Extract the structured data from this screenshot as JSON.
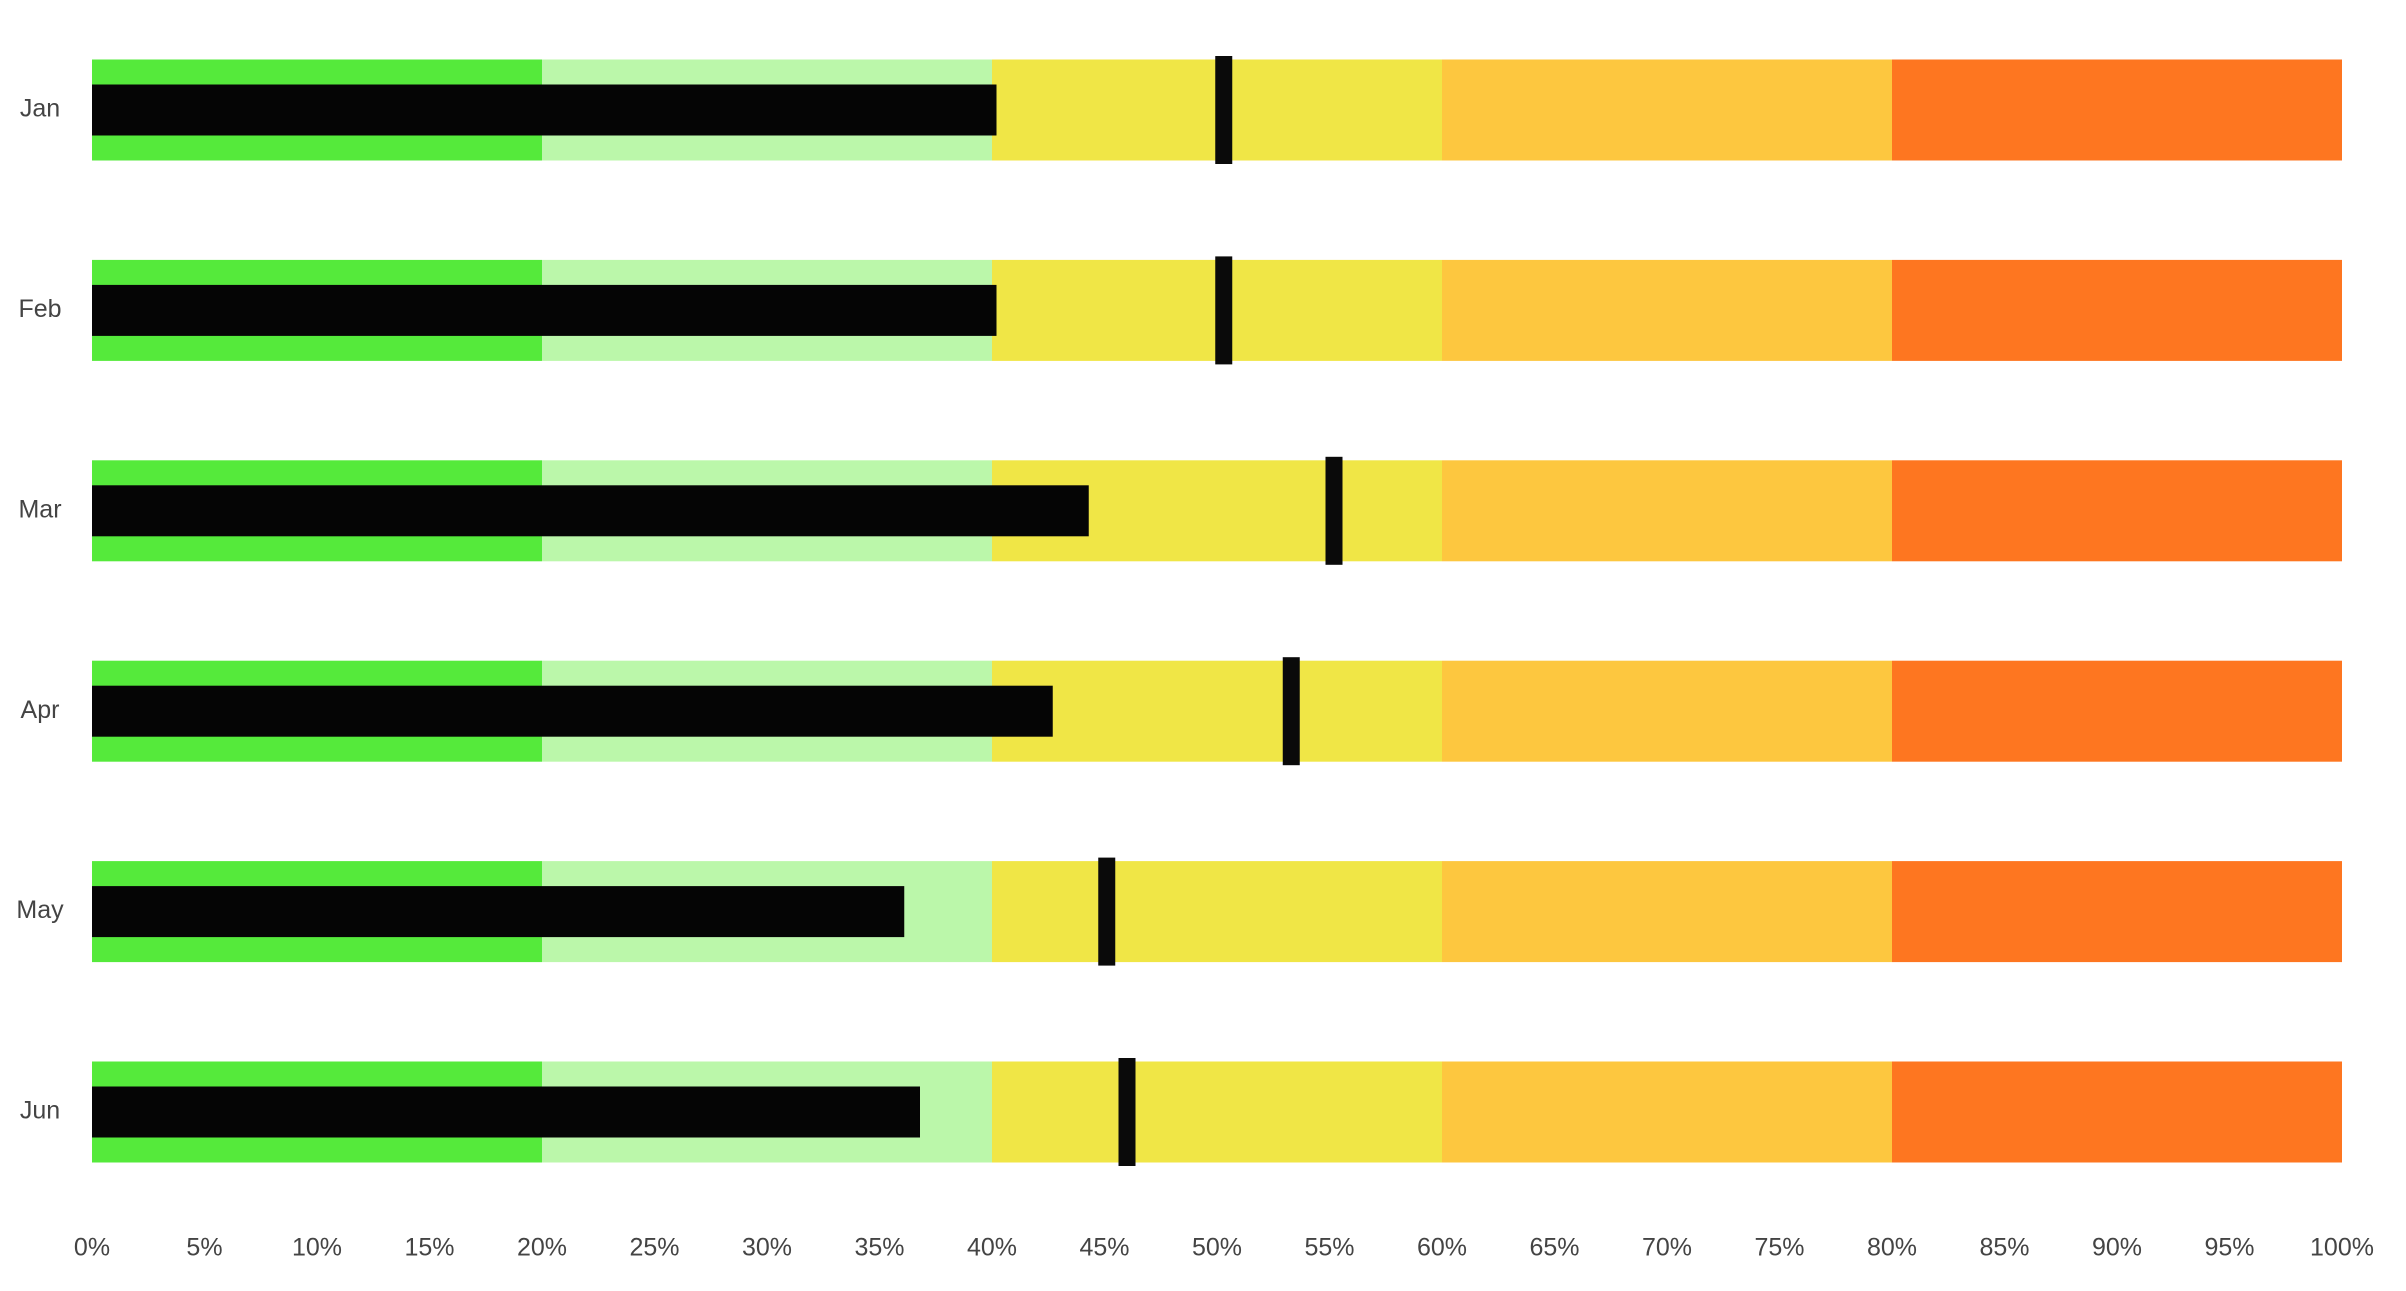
{
  "chart_data": {
    "type": "bullet",
    "categories": [
      "Jan",
      "Feb",
      "Mar",
      "Apr",
      "May",
      "Jun"
    ],
    "values": [
      40.2,
      40.2,
      44.3,
      42.7,
      36.1,
      36.8
    ],
    "targets": [
      50.3,
      50.3,
      55.2,
      53.3,
      45.1,
      46.0
    ],
    "bar_color": "#050505",
    "target_color": "#0a0a0a",
    "ranges": [
      20,
      40,
      60,
      80,
      100
    ],
    "range_colors": [
      "#55ea3b",
      "#bbf7aa",
      "#f0e646",
      "#fdc73f",
      "#fe7620"
    ],
    "xlim": [
      0,
      100
    ],
    "xticks": [
      {
        "value": 0,
        "label": "0%"
      },
      {
        "value": 5,
        "label": "5%"
      },
      {
        "value": 10,
        "label": "10%"
      },
      {
        "value": 15,
        "label": "15%"
      },
      {
        "value": 20,
        "label": "20%"
      },
      {
        "value": 25,
        "label": "25%"
      },
      {
        "value": 30,
        "label": "30%"
      },
      {
        "value": 35,
        "label": "35%"
      },
      {
        "value": 40,
        "label": "40%"
      },
      {
        "value": 45,
        "label": "45%"
      },
      {
        "value": 50,
        "label": "50%"
      },
      {
        "value": 55,
        "label": "55%"
      },
      {
        "value": 60,
        "label": "60%"
      },
      {
        "value": 65,
        "label": "65%"
      },
      {
        "value": 70,
        "label": "70%"
      },
      {
        "value": 75,
        "label": "75%"
      },
      {
        "value": 80,
        "label": "80%"
      },
      {
        "value": 85,
        "label": "85%"
      },
      {
        "value": 90,
        "label": "90%"
      },
      {
        "value": 95,
        "label": "95%"
      },
      {
        "value": 100,
        "label": "100%"
      }
    ]
  }
}
